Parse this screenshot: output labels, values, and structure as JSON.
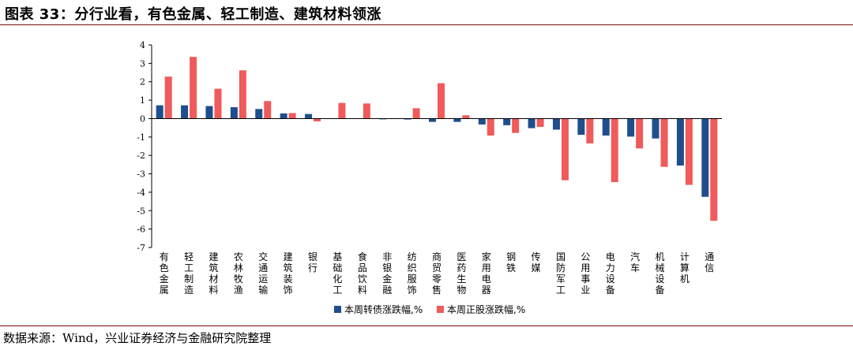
{
  "title": "图表 33：分行业看，有色金属、轻工制造、建筑材料领涨",
  "source": "数据来源：Wind，兴业证券经济与金融研究院整理",
  "colors": {
    "series1": "#1f4e8c",
    "series2": "#f05a5a",
    "rule": "#7a0b0b",
    "axis": "#000000"
  },
  "chart_data": {
    "type": "bar",
    "title": "",
    "xlabel": "",
    "ylabel": "",
    "ylim": [
      -7,
      4
    ],
    "yticks": [
      -7,
      -6,
      -5,
      -4,
      -3,
      -2,
      -1,
      0,
      1,
      2,
      3,
      4
    ],
    "grid": false,
    "legend_position": "bottom",
    "categories": [
      "有色金属",
      "轻工制造",
      "建筑材料",
      "农林牧渔",
      "交通运输",
      "建筑装饰",
      "银行",
      "基础化工",
      "食品饮料",
      "非银金融",
      "纺织服饰",
      "商贸零售",
      "医药生物",
      "家用电器",
      "钢铁",
      "传媒",
      "国防军工",
      "公用事业",
      "电力设备",
      "汽车",
      "机械设备",
      "计算机",
      "通信"
    ],
    "series": [
      {
        "name": "本周转债涨跌幅,%",
        "values": [
          0.72,
          0.72,
          0.68,
          0.62,
          0.52,
          0.28,
          0.25,
          0.02,
          0.01,
          -0.04,
          -0.05,
          -0.18,
          -0.18,
          -0.32,
          -0.36,
          -0.52,
          -0.6,
          -0.88,
          -0.92,
          -0.98,
          -1.08,
          -2.55,
          -4.25
        ]
      },
      {
        "name": "本周正股涨跌幅,%",
        "values": [
          2.28,
          3.35,
          1.62,
          2.62,
          0.95,
          0.3,
          -0.15,
          0.85,
          0.82,
          -0.02,
          0.56,
          1.92,
          0.18,
          -0.92,
          -0.78,
          -0.45,
          -3.35,
          -1.35,
          -3.45,
          -1.62,
          -2.62,
          -3.6,
          -5.55
        ]
      }
    ]
  }
}
